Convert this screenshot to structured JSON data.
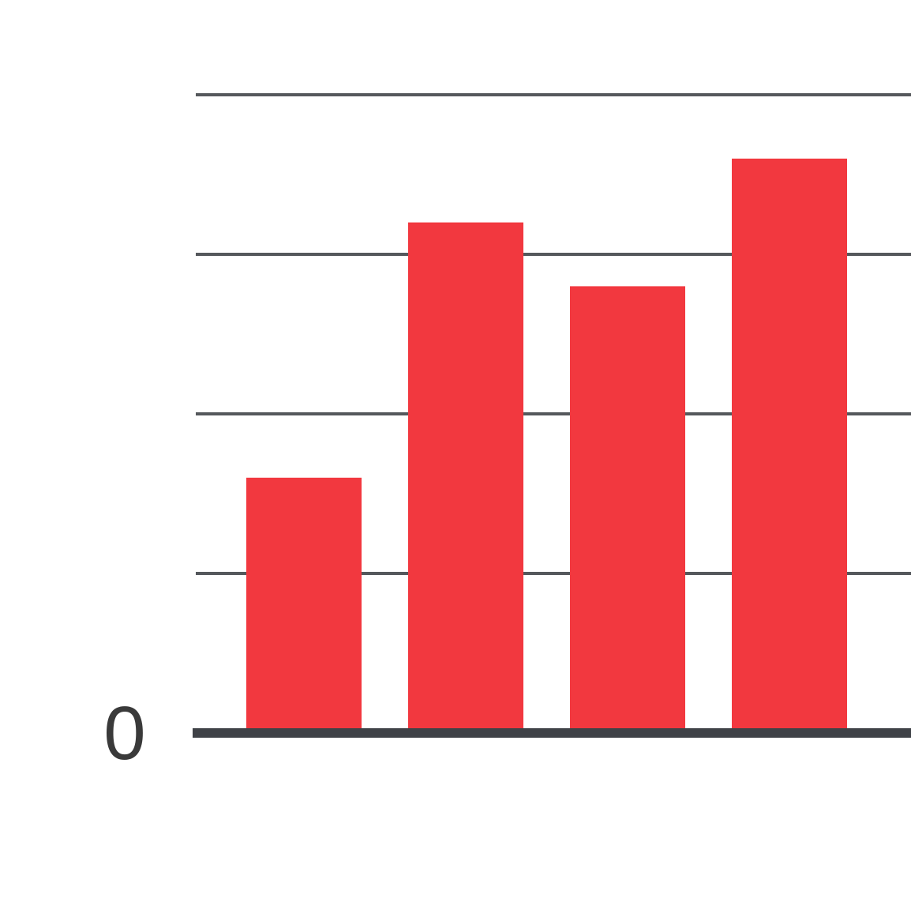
{
  "chart_data": {
    "type": "bar",
    "categories": [
      "",
      "",
      "",
      ""
    ],
    "values": [
      1.6,
      3.2,
      2.8,
      3.6
    ],
    "ylim": [
      0,
      4
    ],
    "grid_step": 1,
    "yticks_labeled": [
      "0"
    ],
    "grid": true,
    "title": "",
    "xlabel": "",
    "ylabel": "",
    "colors": {
      "bar": "#f2383f",
      "gridline": "#55585c",
      "baseline": "#3f4247",
      "tick_text": "#3a3a3a"
    }
  }
}
